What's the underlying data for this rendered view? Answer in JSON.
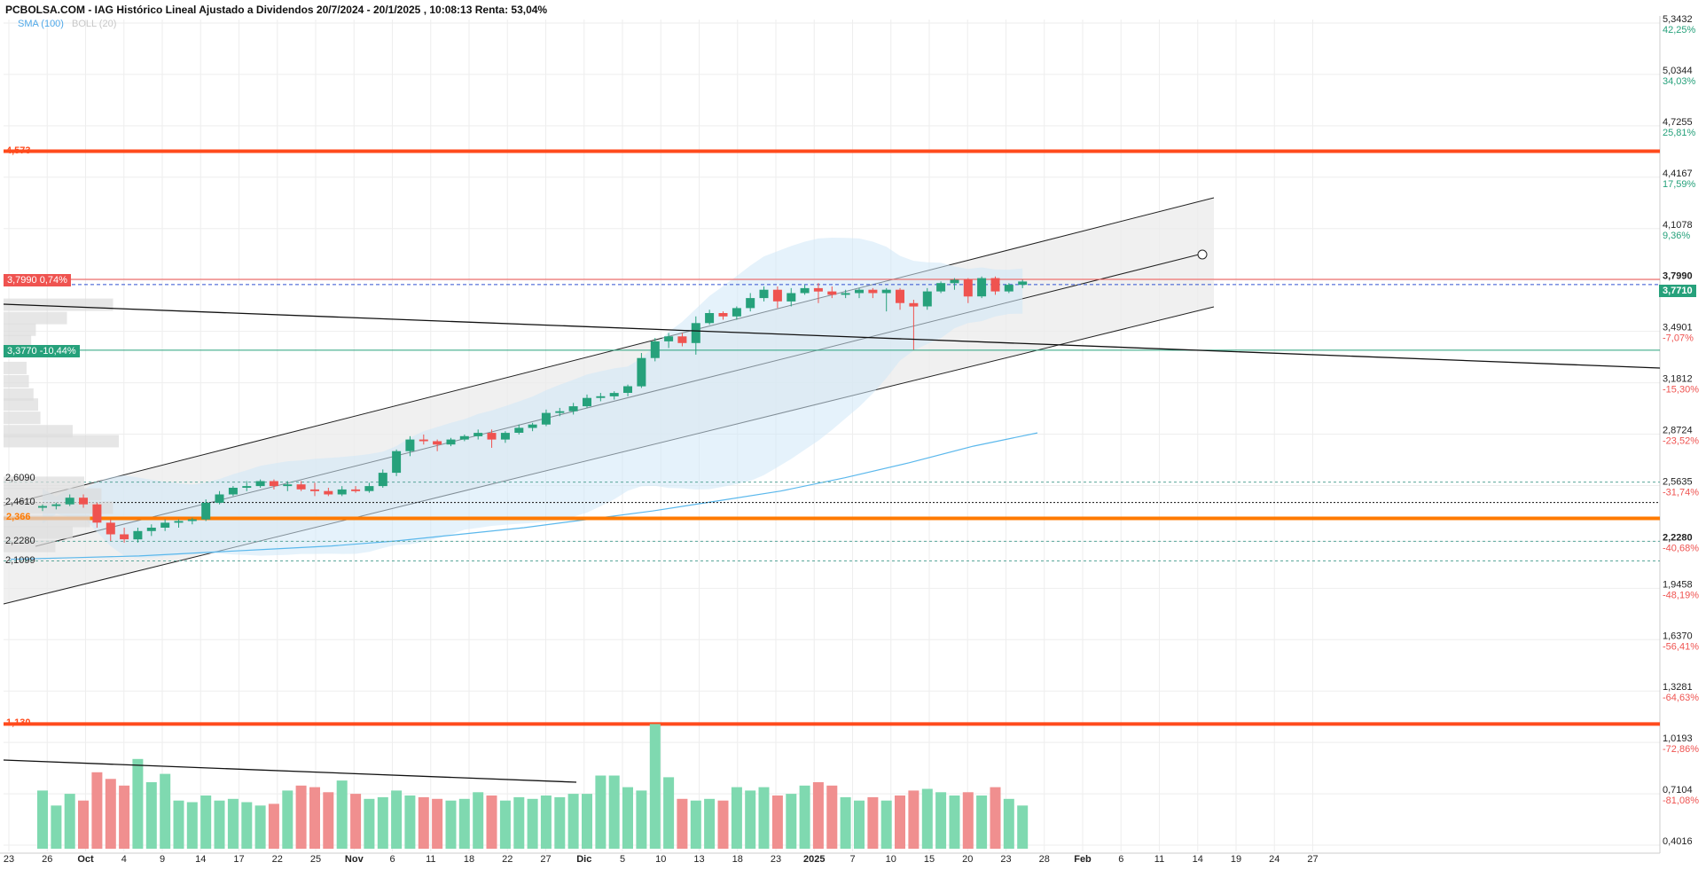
{
  "header": {
    "title": "PCBOLSA.COM - IAG Histórico Lineal Ajustado a Dividendos 20/7/2024 - 20/1/2025 , 10:08:13 Renta: 53,04%",
    "sma_label": "SMA (100)",
    "boll_label": "BOLL (20)"
  },
  "colors": {
    "up": "#26a17b",
    "down": "#ef5350",
    "vol_up": "#7fd9b0",
    "vol_down": "#f08f8f",
    "sma": "#5bb8ec",
    "resistance": "#ff4a1c",
    "support": "#ff7a00"
  },
  "levels": {
    "resistance_top": "4,573",
    "support_orange": "2,366",
    "volume_ref": "1,130"
  },
  "tags": {
    "last_close": "3,7990",
    "last_change": "0,74%",
    "mark_low": "3,3770",
    "mark_low_change": "-10,44%",
    "current_price": "3,7710"
  },
  "left_labels": [
    "2,6090",
    "2,4610",
    "2,2280",
    "2,1099"
  ],
  "right_axis": [
    {
      "price": "5,3432",
      "pct": "42,25%",
      "sign": "up"
    },
    {
      "price": "5,0344",
      "pct": "34,03%",
      "sign": "up"
    },
    {
      "price": "4,7255",
      "pct": "25,81%",
      "sign": "up"
    },
    {
      "price": "4,4167",
      "pct": "17,59%",
      "sign": "up"
    },
    {
      "price": "4,1078",
      "pct": "9,36%",
      "sign": "up"
    },
    {
      "price": "3,7990",
      "pct": "",
      "sign": "bold"
    },
    {
      "price": "3,4901",
      "pct": "-7,07%",
      "sign": "down"
    },
    {
      "price": "3,1812",
      "pct": "-15,30%",
      "sign": "down"
    },
    {
      "price": "2,8724",
      "pct": "-23,52%",
      "sign": "down"
    },
    {
      "price": "2,5635",
      "pct": "-31,74%",
      "sign": "down"
    },
    {
      "price": "2,2280",
      "pct": "-40,68%",
      "sign": "bold"
    },
    {
      "price": "1,9458",
      "pct": "-48,19%",
      "sign": "down"
    },
    {
      "price": "1,6370",
      "pct": "-56,41%",
      "sign": "down"
    },
    {
      "price": "1,3281",
      "pct": "-64,63%",
      "sign": "down"
    },
    {
      "price": "1,0193",
      "pct": "-72,86%",
      "sign": "down"
    },
    {
      "price": "0,7104",
      "pct": "-81,08%",
      "sign": "down"
    },
    {
      "price": "0,4016",
      "pct": "",
      "sign": "none"
    }
  ],
  "x_ticks": [
    {
      "label": "23",
      "bold": false
    },
    {
      "label": "26",
      "bold": false
    },
    {
      "label": "Oct",
      "bold": true
    },
    {
      "label": "4",
      "bold": false
    },
    {
      "label": "9",
      "bold": false
    },
    {
      "label": "14",
      "bold": false
    },
    {
      "label": "17",
      "bold": false
    },
    {
      "label": "22",
      "bold": false
    },
    {
      "label": "25",
      "bold": false
    },
    {
      "label": "Nov",
      "bold": true
    },
    {
      "label": "6",
      "bold": false
    },
    {
      "label": "11",
      "bold": false
    },
    {
      "label": "18",
      "bold": false
    },
    {
      "label": "22",
      "bold": false
    },
    {
      "label": "27",
      "bold": false
    },
    {
      "label": "Dic",
      "bold": true
    },
    {
      "label": "5",
      "bold": false
    },
    {
      "label": "10",
      "bold": false
    },
    {
      "label": "13",
      "bold": false
    },
    {
      "label": "18",
      "bold": false
    },
    {
      "label": "23",
      "bold": false
    },
    {
      "label": "2025",
      "bold": true
    },
    {
      "label": "7",
      "bold": false
    },
    {
      "label": "10",
      "bold": false
    },
    {
      "label": "15",
      "bold": false
    },
    {
      "label": "20",
      "bold": false
    },
    {
      "label": "23",
      "bold": false
    },
    {
      "label": "28",
      "bold": false
    },
    {
      "label": "Feb",
      "bold": true
    },
    {
      "label": "6",
      "bold": false
    },
    {
      "label": "11",
      "bold": false
    },
    {
      "label": "14",
      "bold": false
    },
    {
      "label": "19",
      "bold": false
    },
    {
      "label": "24",
      "bold": false
    },
    {
      "label": "27",
      "bold": false
    }
  ],
  "chart_data": {
    "type": "candlestick",
    "ylim": [
      0.4016,
      5.3432
    ],
    "candles": [
      {
        "o": 2.43,
        "h": 2.45,
        "l": 2.41,
        "c": 2.44
      },
      {
        "o": 2.44,
        "h": 2.46,
        "l": 2.42,
        "c": 2.45
      },
      {
        "o": 2.45,
        "h": 2.51,
        "l": 2.44,
        "c": 2.49
      },
      {
        "o": 2.49,
        "h": 2.51,
        "l": 2.43,
        "c": 2.45
      },
      {
        "o": 2.45,
        "h": 2.46,
        "l": 2.31,
        "c": 2.34
      },
      {
        "o": 2.34,
        "h": 2.36,
        "l": 2.23,
        "c": 2.27
      },
      {
        "o": 2.27,
        "h": 2.31,
        "l": 2.22,
        "c": 2.24
      },
      {
        "o": 2.24,
        "h": 2.31,
        "l": 2.22,
        "c": 2.29
      },
      {
        "o": 2.29,
        "h": 2.33,
        "l": 2.26,
        "c": 2.31
      },
      {
        "o": 2.31,
        "h": 2.36,
        "l": 2.29,
        "c": 2.34
      },
      {
        "o": 2.34,
        "h": 2.36,
        "l": 2.31,
        "c": 2.35
      },
      {
        "o": 2.35,
        "h": 2.37,
        "l": 2.33,
        "c": 2.36
      },
      {
        "o": 2.36,
        "h": 2.48,
        "l": 2.35,
        "c": 2.46
      },
      {
        "o": 2.46,
        "h": 2.53,
        "l": 2.45,
        "c": 2.51
      },
      {
        "o": 2.51,
        "h": 2.56,
        "l": 2.5,
        "c": 2.55
      },
      {
        "o": 2.55,
        "h": 2.59,
        "l": 2.53,
        "c": 2.56
      },
      {
        "o": 2.56,
        "h": 2.6,
        "l": 2.55,
        "c": 2.59
      },
      {
        "o": 2.59,
        "h": 2.6,
        "l": 2.54,
        "c": 2.56
      },
      {
        "o": 2.56,
        "h": 2.59,
        "l": 2.53,
        "c": 2.57
      },
      {
        "o": 2.57,
        "h": 2.59,
        "l": 2.53,
        "c": 2.54
      },
      {
        "o": 2.54,
        "h": 2.58,
        "l": 2.5,
        "c": 2.53
      },
      {
        "o": 2.53,
        "h": 2.55,
        "l": 2.5,
        "c": 2.51
      },
      {
        "o": 2.51,
        "h": 2.56,
        "l": 2.5,
        "c": 2.54
      },
      {
        "o": 2.54,
        "h": 2.56,
        "l": 2.52,
        "c": 2.53
      },
      {
        "o": 2.53,
        "h": 2.58,
        "l": 2.52,
        "c": 2.56
      },
      {
        "o": 2.56,
        "h": 2.66,
        "l": 2.55,
        "c": 2.64
      },
      {
        "o": 2.64,
        "h": 2.78,
        "l": 2.62,
        "c": 2.77
      },
      {
        "o": 2.77,
        "h": 2.86,
        "l": 2.74,
        "c": 2.84
      },
      {
        "o": 2.84,
        "h": 2.87,
        "l": 2.81,
        "c": 2.83
      },
      {
        "o": 2.83,
        "h": 2.84,
        "l": 2.77,
        "c": 2.81
      },
      {
        "o": 2.81,
        "h": 2.85,
        "l": 2.8,
        "c": 2.84
      },
      {
        "o": 2.84,
        "h": 2.87,
        "l": 2.83,
        "c": 2.86
      },
      {
        "o": 2.86,
        "h": 2.9,
        "l": 2.84,
        "c": 2.88
      },
      {
        "o": 2.88,
        "h": 2.9,
        "l": 2.79,
        "c": 2.84
      },
      {
        "o": 2.84,
        "h": 2.89,
        "l": 2.82,
        "c": 2.88
      },
      {
        "o": 2.88,
        "h": 2.93,
        "l": 2.87,
        "c": 2.91
      },
      {
        "o": 2.91,
        "h": 2.94,
        "l": 2.89,
        "c": 2.93
      },
      {
        "o": 2.93,
        "h": 3.02,
        "l": 2.92,
        "c": 3.0
      },
      {
        "o": 3.0,
        "h": 3.03,
        "l": 2.98,
        "c": 3.01
      },
      {
        "o": 3.01,
        "h": 3.06,
        "l": 2.99,
        "c": 3.04
      },
      {
        "o": 3.04,
        "h": 3.11,
        "l": 3.03,
        "c": 3.09
      },
      {
        "o": 3.09,
        "h": 3.12,
        "l": 3.07,
        "c": 3.1
      },
      {
        "o": 3.1,
        "h": 3.13,
        "l": 3.08,
        "c": 3.12
      },
      {
        "o": 3.12,
        "h": 3.17,
        "l": 3.1,
        "c": 3.16
      },
      {
        "o": 3.16,
        "h": 3.36,
        "l": 3.15,
        "c": 3.33
      },
      {
        "o": 3.33,
        "h": 3.45,
        "l": 3.31,
        "c": 3.43
      },
      {
        "o": 3.43,
        "h": 3.48,
        "l": 3.39,
        "c": 3.46
      },
      {
        "o": 3.46,
        "h": 3.48,
        "l": 3.4,
        "c": 3.42
      },
      {
        "o": 3.42,
        "h": 3.58,
        "l": 3.35,
        "c": 3.54
      },
      {
        "o": 3.54,
        "h": 3.62,
        "l": 3.53,
        "c": 3.6
      },
      {
        "o": 3.6,
        "h": 3.61,
        "l": 3.56,
        "c": 3.58
      },
      {
        "o": 3.58,
        "h": 3.64,
        "l": 3.56,
        "c": 3.63
      },
      {
        "o": 3.63,
        "h": 3.72,
        "l": 3.61,
        "c": 3.69
      },
      {
        "o": 3.69,
        "h": 3.76,
        "l": 3.67,
        "c": 3.74
      },
      {
        "o": 3.74,
        "h": 3.76,
        "l": 3.63,
        "c": 3.67
      },
      {
        "o": 3.67,
        "h": 3.75,
        "l": 3.64,
        "c": 3.72
      },
      {
        "o": 3.72,
        "h": 3.77,
        "l": 3.71,
        "c": 3.75
      },
      {
        "o": 3.75,
        "h": 3.78,
        "l": 3.66,
        "c": 3.73
      },
      {
        "o": 3.73,
        "h": 3.76,
        "l": 3.69,
        "c": 3.71
      },
      {
        "o": 3.71,
        "h": 3.74,
        "l": 3.69,
        "c": 3.72
      },
      {
        "o": 3.72,
        "h": 3.75,
        "l": 3.69,
        "c": 3.74
      },
      {
        "o": 3.74,
        "h": 3.75,
        "l": 3.69,
        "c": 3.72
      },
      {
        "o": 3.72,
        "h": 3.75,
        "l": 3.61,
        "c": 3.74
      },
      {
        "o": 3.74,
        "h": 3.75,
        "l": 3.62,
        "c": 3.66
      },
      {
        "o": 3.66,
        "h": 3.68,
        "l": 3.38,
        "c": 3.64
      },
      {
        "o": 3.64,
        "h": 3.75,
        "l": 3.62,
        "c": 3.73
      },
      {
        "o": 3.73,
        "h": 3.79,
        "l": 3.72,
        "c": 3.78
      },
      {
        "o": 3.78,
        "h": 3.81,
        "l": 3.74,
        "c": 3.8
      },
      {
        "o": 3.8,
        "h": 3.81,
        "l": 3.66,
        "c": 3.7
      },
      {
        "o": 3.7,
        "h": 3.82,
        "l": 3.69,
        "c": 3.81
      },
      {
        "o": 3.81,
        "h": 3.82,
        "l": 3.71,
        "c": 3.73
      },
      {
        "o": 3.73,
        "h": 3.78,
        "l": 3.72,
        "c": 3.77
      },
      {
        "o": 3.77,
        "h": 3.8,
        "l": 3.75,
        "c": 3.79
      }
    ],
    "volume": [
      0.73,
      0.64,
      0.71,
      0.67,
      0.84,
      0.8,
      0.76,
      0.92,
      0.78,
      0.83,
      0.67,
      0.66,
      0.7,
      0.67,
      0.68,
      0.66,
      0.64,
      0.65,
      0.73,
      0.76,
      0.75,
      0.72,
      0.79,
      0.71,
      0.68,
      0.69,
      0.73,
      0.7,
      0.69,
      0.68,
      0.67,
      0.68,
      0.72,
      0.7,
      0.67,
      0.69,
      0.68,
      0.7,
      0.69,
      0.71,
      0.71,
      0.82,
      0.82,
      0.75,
      0.73,
      1.13,
      0.81,
      0.68,
      0.67,
      0.68,
      0.67,
      0.75,
      0.73,
      0.75,
      0.7,
      0.71,
      0.76,
      0.78,
      0.76,
      0.69,
      0.67,
      0.69,
      0.67,
      0.7,
      0.73,
      0.74,
      0.72,
      0.7,
      0.72,
      0.7,
      0.75,
      0.68,
      0.64
    ]
  }
}
